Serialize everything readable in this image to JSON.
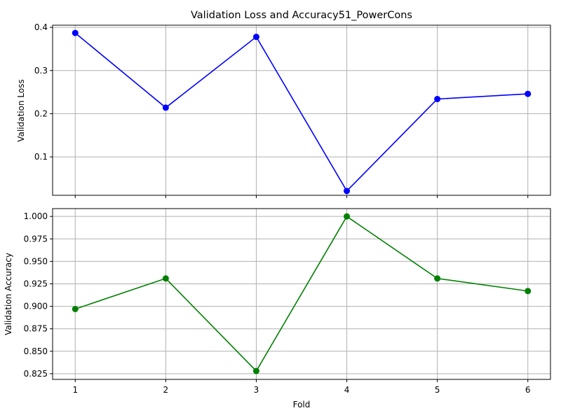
{
  "chart_data": [
    {
      "type": "line",
      "title": "Validation Loss and Accuracy51_PowerCons",
      "xlabel": "",
      "ylabel": "Validation Loss",
      "x": [
        1,
        2,
        3,
        4,
        5,
        6
      ],
      "xticks": [
        "1",
        "2",
        "3",
        "4",
        "5",
        "6"
      ],
      "xlim": [
        0.75,
        6.25
      ],
      "ylim": [
        0.011,
        0.405
      ],
      "yticks": [
        "0.1",
        "0.2",
        "0.3",
        "0.4"
      ],
      "ytick_values": [
        0.1,
        0.2,
        0.3,
        0.4
      ],
      "series": [
        {
          "values": [
            0.387,
            0.214,
            0.378,
            0.021,
            0.234,
            0.246
          ],
          "color": "#0000ff",
          "marker": "circle"
        }
      ],
      "grid": true
    },
    {
      "type": "line",
      "title": "",
      "xlabel": "Fold",
      "ylabel": "Validation Accuracy",
      "x": [
        1,
        2,
        3,
        4,
        5,
        6
      ],
      "xticks": [
        "1",
        "2",
        "3",
        "4",
        "5",
        "6"
      ],
      "xlim": [
        0.75,
        6.25
      ],
      "ylim": [
        0.8187,
        1.0087
      ],
      "yticks": [
        "0.825",
        "0.850",
        "0.875",
        "0.900",
        "0.925",
        "0.950",
        "0.975",
        "1.000"
      ],
      "ytick_values": [
        0.825,
        0.85,
        0.875,
        0.9,
        0.925,
        0.95,
        0.975,
        1.0
      ],
      "series": [
        {
          "values": [
            0.897,
            0.931,
            0.828,
            1.0,
            0.931,
            0.917
          ],
          "color": "#008000",
          "marker": "circle"
        }
      ],
      "grid": true
    }
  ]
}
